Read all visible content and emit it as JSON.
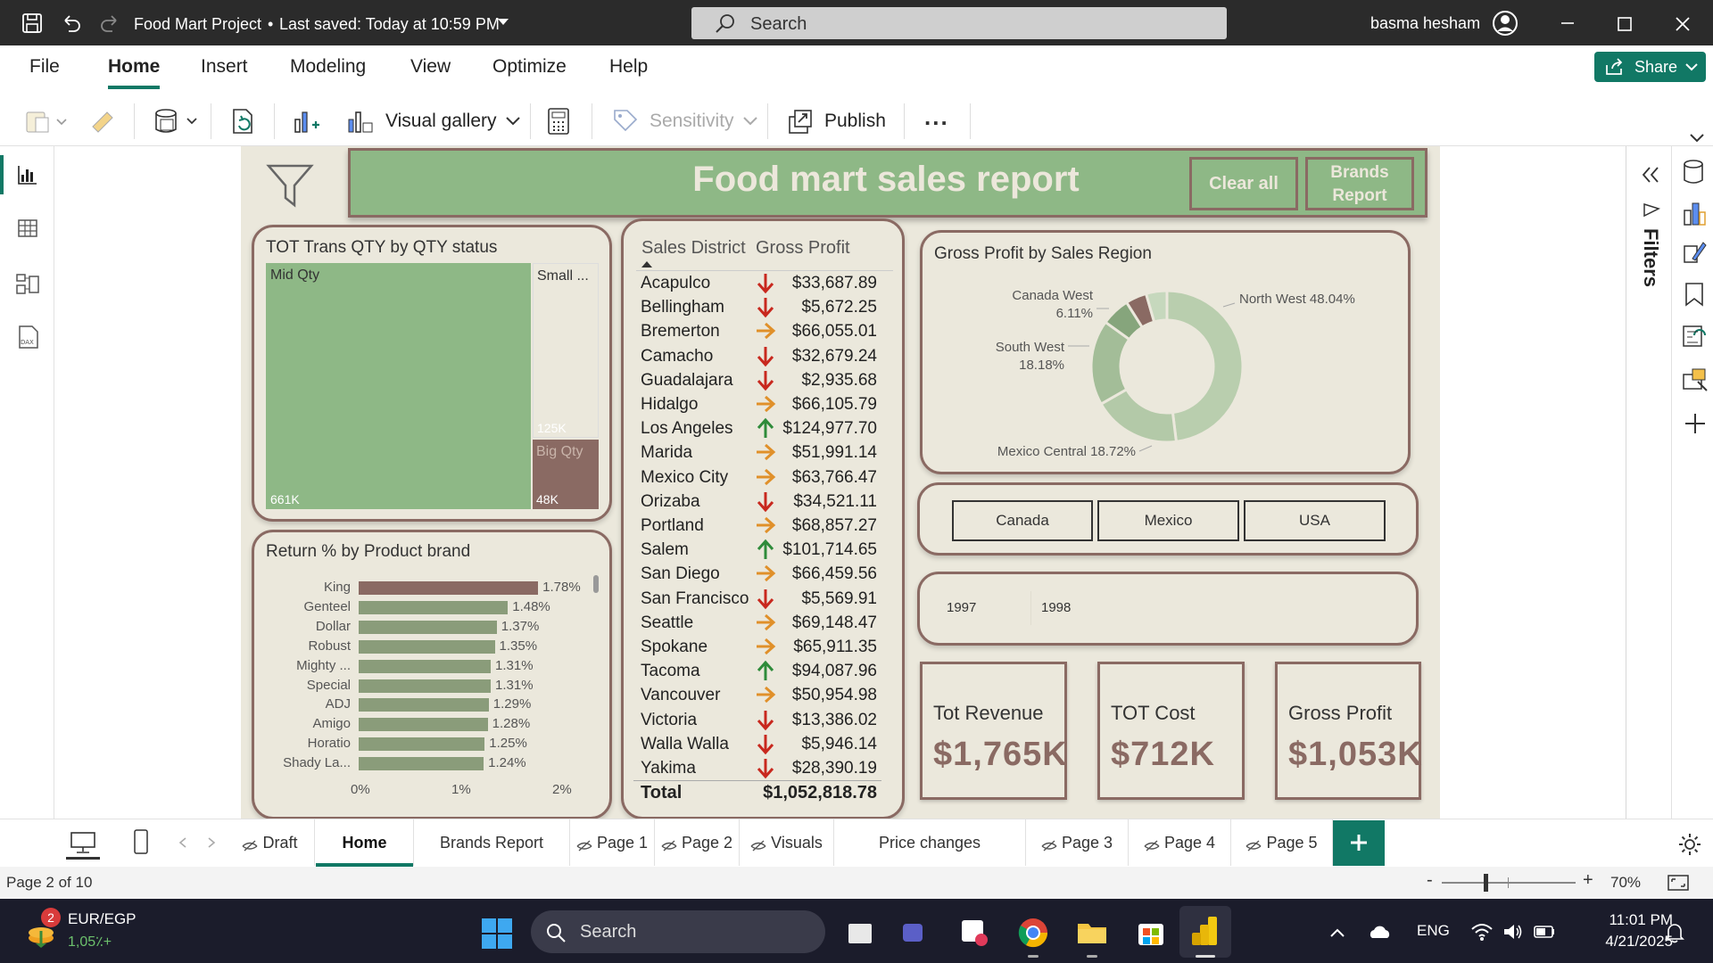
{
  "titlebar": {
    "title": "Food Mart Project",
    "saved": "Last saved: Today at 10:59 PM",
    "search": "Search",
    "user": "basma hesham"
  },
  "menu": {
    "items": [
      "File",
      "Home",
      "Insert",
      "Modeling",
      "View",
      "Optimize",
      "Help"
    ],
    "share": "Share"
  },
  "ribbon": {
    "visual_gallery": "Visual gallery",
    "sensitivity": "Sensitivity",
    "publish": "Publish",
    "more": "..."
  },
  "report": {
    "title": "Food mart sales report",
    "clear_all": "Clear all",
    "brands_report_l1": "Brands",
    "brands_report_l2": "Report"
  },
  "treemap": {
    "title": "TOT Trans QTY by QTY status",
    "items": [
      {
        "label": "Mid Qty",
        "value": "661K"
      },
      {
        "label": "Small ...",
        "value": "125K"
      },
      {
        "label": "Big Qty",
        "value": "48K"
      }
    ]
  },
  "table": {
    "col1": "Sales District",
    "col2": "Gross Profit",
    "rows": [
      {
        "d": "Acapulco",
        "p": "$33,687.89",
        "t": "down"
      },
      {
        "d": "Bellingham",
        "p": "$5,672.25",
        "t": "down"
      },
      {
        "d": "Bremerton",
        "p": "$66,055.01",
        "t": "flat"
      },
      {
        "d": "Camacho",
        "p": "$32,679.24",
        "t": "down"
      },
      {
        "d": "Guadalajara",
        "p": "$2,935.68",
        "t": "down"
      },
      {
        "d": "Hidalgo",
        "p": "$66,105.79",
        "t": "flat"
      },
      {
        "d": "Los Angeles",
        "p": "$124,977.70",
        "t": "up"
      },
      {
        "d": "Marida",
        "p": "$51,991.14",
        "t": "flat"
      },
      {
        "d": "Mexico City",
        "p": "$63,766.47",
        "t": "flat"
      },
      {
        "d": "Orizaba",
        "p": "$34,521.11",
        "t": "down"
      },
      {
        "d": "Portland",
        "p": "$68,857.27",
        "t": "flat"
      },
      {
        "d": "Salem",
        "p": "$101,714.65",
        "t": "up"
      },
      {
        "d": "San Diego",
        "p": "$66,459.56",
        "t": "flat"
      },
      {
        "d": "San Francisco",
        "p": "$5,569.91",
        "t": "down"
      },
      {
        "d": "Seattle",
        "p": "$69,148.47",
        "t": "flat"
      },
      {
        "d": "Spokane",
        "p": "$65,911.35",
        "t": "flat"
      },
      {
        "d": "Tacoma",
        "p": "$94,087.96",
        "t": "up"
      },
      {
        "d": "Vancouver",
        "p": "$50,954.98",
        "t": "flat"
      },
      {
        "d": "Victoria",
        "p": "$13,386.02",
        "t": "down"
      },
      {
        "d": "Walla Walla",
        "p": "$5,946.14",
        "t": "down"
      },
      {
        "d": "Yakima",
        "p": "$28,390.19",
        "t": "down"
      }
    ],
    "total_label": "Total",
    "total_value": "$1,052,818.78"
  },
  "returns": {
    "title": "Return % by Product brand",
    "axis": [
      "0%",
      "1%",
      "2%"
    ]
  },
  "donut": {
    "title": "Gross Profit by Sales Region"
  },
  "countries": [
    "Canada",
    "Mexico",
    "USA"
  ],
  "years": [
    "1997",
    "1998"
  ],
  "kpis": [
    {
      "label": "Tot Revenue",
      "value": "$1,765K"
    },
    {
      "label": "TOT Cost",
      "value": "$712K"
    },
    {
      "label": "Gross Profit",
      "value": "$1,053K"
    }
  ],
  "tabs": [
    "Draft",
    "Home",
    "Brands Report",
    "Page 1",
    "Page 2",
    "Visuals",
    "Price changes",
    "Page 3",
    "Page 4",
    "Page 5"
  ],
  "status": {
    "page": "Page 2 of 10",
    "zoom": "70%"
  },
  "taskbar": {
    "currency": "EUR/EGP",
    "rate": "1,05٪+",
    "badge": "2",
    "search": "Search",
    "lang": "ENG",
    "time": "11:01 PM",
    "date": "4/21/2025"
  },
  "chart_data": [
    {
      "type": "bar",
      "orientation": "horizontal",
      "title": "Return % by Product brand",
      "categories": [
        "King",
        "Genteel",
        "Dollar",
        "Robust",
        "Mighty ...",
        "Special",
        "ADJ",
        "Amigo",
        "Horatio",
        "Shady La..."
      ],
      "values": [
        1.78,
        1.48,
        1.37,
        1.35,
        1.31,
        1.31,
        1.29,
        1.28,
        1.25,
        1.24
      ],
      "labels": [
        "1.78%",
        "1.48%",
        "1.37%",
        "1.35%",
        "1.31%",
        "1.31%",
        "1.29%",
        "1.28%",
        "1.25%",
        "1.24%"
      ],
      "xlim": [
        0,
        2
      ]
    },
    {
      "type": "pie",
      "style": "donut",
      "title": "Gross Profit by Sales Region",
      "slices": [
        {
          "label": "North West 48.04%",
          "value": 48.04,
          "color": "#b9ceae"
        },
        {
          "label": "Mexico Central 18.72%",
          "value": 18.72,
          "color": "#b3c9a8"
        },
        {
          "label": "South West 18.18%",
          "value": 18.18,
          "color": "#a3bd98"
        },
        {
          "label": "Canada West 6.11%",
          "value": 6.11,
          "color": "#86a57c"
        },
        {
          "label": "",
          "value": 4.5,
          "color": "#8a6a63"
        },
        {
          "label": "",
          "value": 4.45,
          "color": "#c6d8bd"
        }
      ]
    },
    {
      "type": "treemap",
      "title": "TOT Trans QTY by QTY status",
      "categories": [
        "Mid Qty",
        "Small ...",
        "Big Qty"
      ],
      "values": [
        661,
        125,
        48
      ]
    }
  ]
}
